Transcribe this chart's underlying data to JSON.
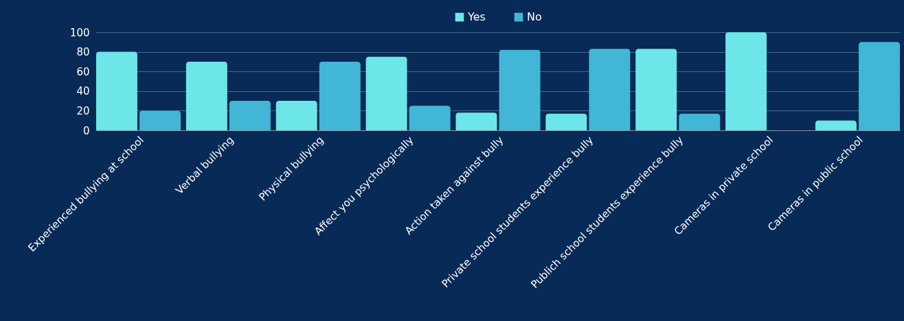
{
  "chart_data": {
    "type": "bar",
    "categories": [
      "Experienced bullying at school",
      "Verbal bullying",
      "Physical bullying",
      "Affect you psychologically",
      "Action taken against bully",
      "Private school students experience bully",
      "Publich school students experience bully",
      "Cameras in private school",
      "Cameras in public school"
    ],
    "series": [
      {
        "name": "Yes",
        "color": "#6ce6e8",
        "values": [
          80,
          70,
          30,
          75,
          18,
          17,
          83,
          100,
          10
        ]
      },
      {
        "name": "No",
        "color": "#42b6d6",
        "values": [
          20,
          30,
          70,
          25,
          82,
          83,
          17,
          0,
          90
        ]
      }
    ],
    "ylim": [
      0,
      100
    ],
    "yticks": [
      0,
      20,
      40,
      60,
      80,
      100
    ],
    "grid": "y",
    "legend": "top"
  }
}
